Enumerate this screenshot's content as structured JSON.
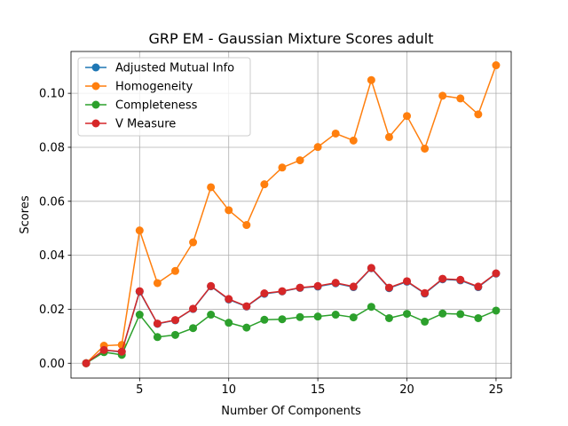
{
  "chart_data": {
    "type": "line",
    "title": "GRP EM - Gaussian Mixture Scores adult",
    "xlabel": "Number Of Components",
    "ylabel": "Scores",
    "xlim": [
      1.15,
      25.85
    ],
    "ylim": [
      -0.0055,
      0.1155
    ],
    "xticks": [
      5,
      10,
      15,
      20,
      25
    ],
    "xtick_labels": [
      "5",
      "10",
      "15",
      "20",
      "25"
    ],
    "yticks": [
      0.0,
      0.02,
      0.04,
      0.06,
      0.08,
      0.1
    ],
    "ytick_labels": [
      "0.00",
      "0.02",
      "0.04",
      "0.06",
      "0.08",
      "0.10"
    ],
    "grid": true,
    "legend_position": "top-left",
    "x": [
      2,
      3,
      4,
      5,
      6,
      7,
      8,
      9,
      10,
      11,
      12,
      13,
      14,
      15,
      16,
      17,
      18,
      19,
      20,
      21,
      22,
      23,
      24,
      25
    ],
    "series": [
      {
        "name": "Adjusted Mutual Info",
        "color": "#1f77b4",
        "values": [
          0.0,
          0.0048,
          0.0042,
          0.0265,
          0.0146,
          0.0159,
          0.0201,
          0.0285,
          0.0236,
          0.021,
          0.0257,
          0.0266,
          0.0279,
          0.0284,
          0.0296,
          0.0282,
          0.0352,
          0.0278,
          0.0302,
          0.0258,
          0.0311,
          0.0307,
          0.0282,
          0.0332
        ]
      },
      {
        "name": "Homogeneity",
        "color": "#ff7f0e",
        "values": [
          0.0,
          0.0065,
          0.0068,
          0.0492,
          0.0297,
          0.0342,
          0.0448,
          0.0652,
          0.0567,
          0.0512,
          0.0663,
          0.0725,
          0.0752,
          0.0801,
          0.0851,
          0.0825,
          0.1049,
          0.0838,
          0.0916,
          0.0795,
          0.0991,
          0.0981,
          0.0922,
          0.1104
        ]
      },
      {
        "name": "Completeness",
        "color": "#2ca02c",
        "values": [
          0.0,
          0.0041,
          0.0031,
          0.018,
          0.0097,
          0.0105,
          0.013,
          0.018,
          0.015,
          0.0132,
          0.0161,
          0.0163,
          0.0171,
          0.0173,
          0.018,
          0.017,
          0.0209,
          0.0167,
          0.0183,
          0.0154,
          0.0184,
          0.0182,
          0.0167,
          0.0195
        ]
      },
      {
        "name": "V Measure",
        "color": "#d62728",
        "values": [
          0.0,
          0.0049,
          0.0043,
          0.0267,
          0.0147,
          0.016,
          0.0202,
          0.0286,
          0.0238,
          0.0211,
          0.0259,
          0.0267,
          0.028,
          0.0286,
          0.0298,
          0.0284,
          0.0353,
          0.028,
          0.0304,
          0.026,
          0.0313,
          0.0309,
          0.0284,
          0.0333
        ]
      }
    ]
  }
}
